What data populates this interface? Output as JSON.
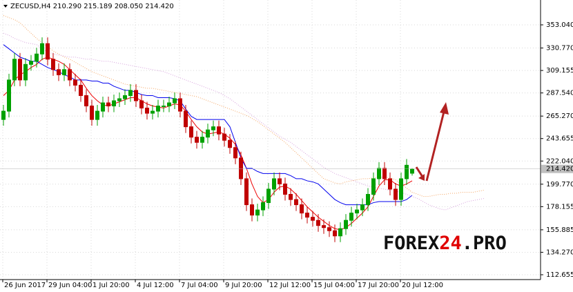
{
  "chart_data": {
    "type": "candlestick",
    "title": "ZECUSD,H4  210.290 215.189 208.050 214.420",
    "watermark": [
      "FOREX",
      "24",
      ".PRO"
    ],
    "categories": [
      "26 Jun 2017",
      null,
      null,
      null,
      null,
      null,
      null,
      null,
      "29 Jun 04:00",
      null,
      null,
      null,
      null,
      null,
      null,
      null,
      "1 Jul 20:00",
      null,
      null,
      null,
      null,
      null,
      null,
      null,
      "4 Jul 12:00",
      null,
      null,
      null,
      null,
      null,
      null,
      null,
      "7 Jul 04:00",
      null,
      null,
      null,
      null,
      null,
      null,
      null,
      "9 Jul 20:00",
      null,
      null,
      null,
      null,
      null,
      null,
      null,
      "12 Jul 12:00",
      null,
      null,
      null,
      null,
      null,
      null,
      null,
      "15 Jul 04:00",
      null,
      null,
      null,
      null,
      null,
      null,
      null,
      "17 Jul 20:00",
      null,
      null,
      null,
      null,
      null,
      null,
      null,
      "20 Jul 12:00",
      null,
      null,
      null,
      null,
      null,
      null,
      null,
      null,
      null,
      null,
      null,
      null,
      null,
      null,
      null
    ],
    "open": [
      262,
      270,
      300,
      320,
      300,
      315,
      318,
      325,
      335,
      320,
      310,
      305,
      310,
      300,
      295,
      285,
      275,
      262,
      270,
      278,
      275,
      280,
      282,
      285,
      290,
      280,
      273,
      268,
      270,
      275,
      275,
      278,
      282,
      270,
      255,
      245,
      240,
      245,
      252,
      255,
      248,
      242,
      235,
      225,
      205,
      180,
      170,
      175,
      182,
      195,
      205,
      200,
      190,
      185,
      180,
      172,
      168,
      165,
      160,
      158,
      155,
      150,
      157,
      165,
      172,
      175,
      180,
      190,
      205,
      215,
      205,
      195,
      185,
      205,
      210.29,
      null,
      null,
      null,
      null,
      null,
      null,
      null,
      null,
      null,
      null,
      null,
      null,
      null
    ],
    "high": [
      276,
      306,
      326,
      326,
      321,
      324,
      331,
      341,
      341,
      326,
      316,
      316,
      316,
      306,
      301,
      291,
      281,
      276,
      284,
      284,
      286,
      288,
      291,
      296,
      296,
      286,
      279,
      276,
      281,
      281,
      284,
      288,
      288,
      276,
      261,
      251,
      251,
      258,
      261,
      261,
      254,
      248,
      241,
      231,
      211,
      186,
      181,
      188,
      201,
      211,
      211,
      206,
      196,
      191,
      186,
      178,
      174,
      171,
      166,
      164,
      161,
      163,
      171,
      178,
      181,
      186,
      196,
      211,
      221,
      221,
      211,
      201,
      211,
      224,
      215.189,
      null,
      null,
      null,
      null,
      null,
      null,
      null,
      null,
      null,
      null,
      null,
      null,
      null
    ],
    "low": [
      256,
      264,
      294,
      294,
      294,
      309,
      312,
      319,
      314,
      304,
      299,
      299,
      294,
      289,
      279,
      269,
      256,
      256,
      264,
      269,
      269,
      274,
      276,
      279,
      274,
      267,
      262,
      262,
      264,
      269,
      269,
      272,
      264,
      249,
      239,
      234,
      234,
      239,
      246,
      242,
      236,
      229,
      219,
      199,
      174,
      164,
      164,
      169,
      176,
      189,
      194,
      184,
      179,
      174,
      166,
      162,
      159,
      154,
      152,
      149,
      144,
      144,
      151,
      159,
      166,
      169,
      174,
      184,
      199,
      199,
      189,
      179,
      179,
      199,
      208.05,
      null,
      null,
      null,
      null,
      null,
      null,
      null,
      null,
      null,
      null,
      null,
      null,
      null
    ],
    "close": [
      270,
      300,
      320,
      300,
      315,
      318,
      325,
      335,
      320,
      310,
      305,
      310,
      300,
      295,
      285,
      275,
      262,
      270,
      278,
      275,
      280,
      282,
      285,
      290,
      280,
      273,
      268,
      270,
      275,
      275,
      278,
      282,
      270,
      255,
      245,
      240,
      245,
      252,
      255,
      248,
      242,
      235,
      225,
      205,
      180,
      170,
      175,
      182,
      195,
      205,
      200,
      190,
      185,
      180,
      172,
      168,
      165,
      160,
      158,
      155,
      150,
      157,
      165,
      172,
      175,
      180,
      190,
      205,
      215,
      205,
      195,
      185,
      205,
      218,
      214.42,
      null,
      null,
      null,
      null,
      null,
      null,
      null,
      null,
      null,
      null,
      null,
      null,
      null
    ],
    "up_color": "#00a000",
    "down_color": "#c00000",
    "series": [
      {
        "color": "#ee0000",
        "style": "solid",
        "values": [
          285,
          290,
          300,
          305,
          308,
          312,
          315,
          320,
          322,
          320,
          318,
          315,
          310,
          305,
          300,
          292,
          285,
          280,
          276,
          275,
          277,
          279,
          281,
          283,
          283,
          280,
          277,
          275,
          274,
          273,
          275,
          277,
          276,
          270,
          262,
          255,
          250,
          248,
          249,
          250,
          248,
          244,
          238,
          228,
          215,
          200,
          188,
          182,
          185,
          192,
          197,
          198,
          195,
          190,
          184,
          178,
          173,
          168,
          164,
          160,
          157,
          156,
          158,
          162,
          167,
          172,
          178,
          188,
          198,
          204,
          204,
          200,
          198,
          200,
          203,
          null,
          null,
          null,
          null,
          null,
          null,
          null,
          null,
          null,
          null,
          null,
          null,
          null
        ]
      },
      {
        "color": "#0000ee",
        "style": "solid",
        "values": [
          334,
          330,
          326,
          322,
          320,
          318,
          318,
          315,
          312,
          310,
          308,
          305,
          303,
          300,
          300,
          300,
          299,
          299,
          297,
          297,
          294,
          292,
          290,
          290,
          288,
          286,
          285,
          285,
          283,
          283,
          283,
          282,
          280,
          272,
          265,
          262,
          262,
          262,
          262,
          262,
          262,
          255,
          240,
          225,
          215,
          215,
          212,
          210,
          210,
          210,
          210,
          210,
          208,
          205,
          205,
          203,
          202,
          200,
          195,
          190,
          185,
          182,
          180,
          180,
          180,
          180,
          180,
          182,
          183,
          183,
          183,
          183,
          183,
          185,
          189,
          null,
          null,
          null,
          null,
          null,
          null,
          null,
          null,
          null,
          null,
          null,
          null,
          null
        ]
      },
      {
        "color": "#f4a460",
        "style": "dotted",
        "values": [
          362,
          360,
          358,
          355,
          350,
          345,
          340,
          336,
          332,
          328,
          325,
          322,
          320,
          317,
          314,
          311,
          308,
          306,
          304,
          302,
          300,
          298,
          296,
          295,
          294,
          293,
          292,
          292,
          291,
          290,
          289,
          288,
          287,
          286,
          285,
          284,
          282,
          280,
          278,
          276,
          274,
          272,
          270,
          268,
          266,
          263,
          260,
          256,
          252,
          248,
          244,
          240,
          235,
          230,
          225,
          220,
          215,
          210,
          205,
          203,
          201,
          200,
          202,
          203,
          204,
          205,
          205,
          206,
          206,
          207,
          206,
          204,
          200,
          196,
          192,
          190,
          188,
          188,
          189,
          190,
          190,
          191,
          191,
          192,
          192,
          192,
          193,
          194
        ]
      },
      {
        "color": "#d6a0dc",
        "style": "dotted",
        "values": [
          345,
          343,
          340,
          338,
          336,
          335,
          334,
          330,
          327,
          325,
          324,
          323,
          322,
          322,
          321,
          320,
          320,
          319,
          318,
          318,
          317,
          316,
          315,
          314,
          313,
          312,
          311,
          310,
          309,
          308,
          306,
          304,
          302,
          300,
          298,
          296,
          294,
          292,
          290,
          288,
          285,
          282,
          278,
          274,
          270,
          266,
          262,
          258,
          254,
          250,
          246,
          243,
          240,
          236,
          232,
          228,
          224,
          220,
          216,
          213,
          210,
          208,
          206,
          204,
          202,
          200,
          198,
          197,
          196,
          195,
          194,
          193,
          192,
          190,
          188,
          186,
          183,
          180,
          178,
          176,
          175,
          177,
          179,
          181,
          183,
          184,
          185,
          186
        ]
      }
    ],
    "ylim": [
      108.0,
      376.95
    ],
    "yticks": [
      {
        "value": 353.04,
        "label": "353.040"
      },
      {
        "value": 330.77,
        "label": "330.770"
      },
      309.155,
      {
        "value": 287.54,
        "label": "287.540"
      },
      {
        "value": 265.27,
        "label": "265.270"
      },
      243.655,
      {
        "value": 222.04,
        "label": "222.040"
      },
      {
        "value": 199.77,
        "label": "199.770"
      },
      178.155,
      155.885,
      {
        "value": 134.27,
        "label": "134.270"
      },
      112.655
    ],
    "last_price": {
      "value": 214.42,
      "label": "214.420"
    },
    "grid": true
  }
}
